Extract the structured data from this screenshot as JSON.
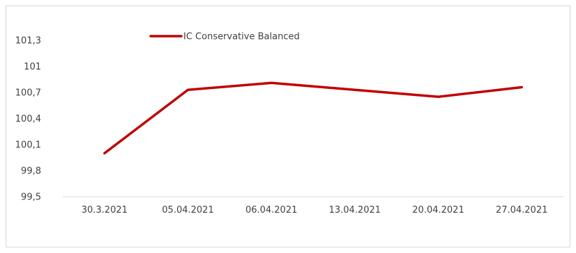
{
  "chart_data": {
    "type": "line",
    "title": "",
    "xlabel": "",
    "ylabel": "",
    "categories": [
      "30.3.2021",
      "05.04.2021",
      "06.04.2021",
      "13.04.2021",
      "20.04.2021",
      "27.04.2021"
    ],
    "series": [
      {
        "name": "IC Conservative Balanced",
        "color": "#c00000",
        "values": [
          100.0,
          100.73,
          100.81,
          100.73,
          100.65,
          100.76
        ]
      }
    ],
    "ylim": [
      99.5,
      101.5
    ],
    "y_ticks": [
      "99,5",
      "99,8",
      "100,1",
      "100,4",
      "100,7",
      "101",
      "101,3"
    ],
    "grid": false,
    "legend_position": "top-left"
  }
}
